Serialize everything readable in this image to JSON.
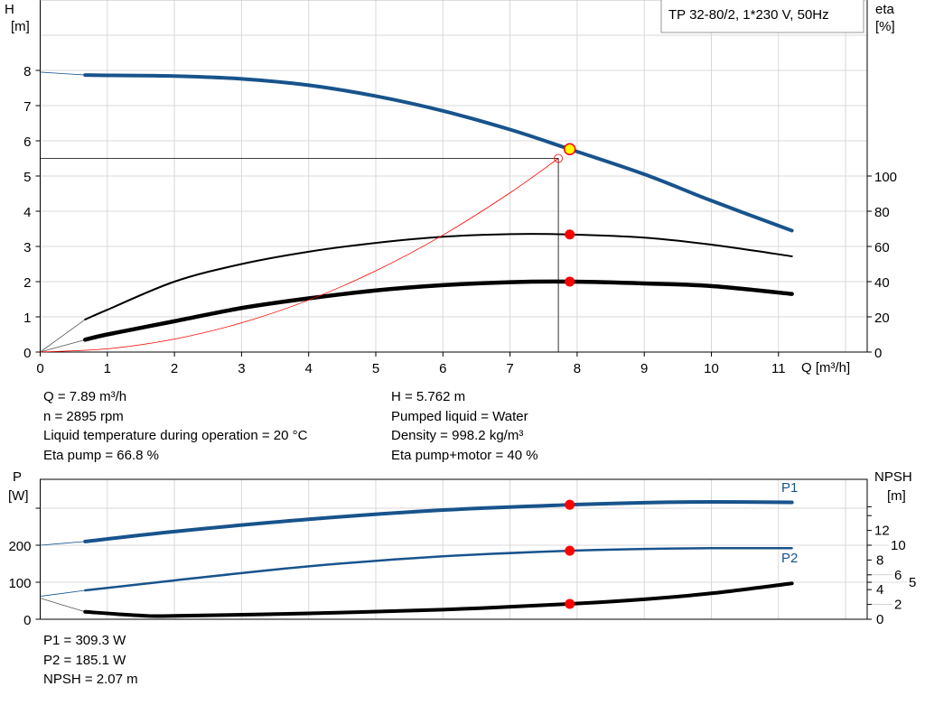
{
  "legend_box": "TP 32-80/2, 1*230 V, 50Hz",
  "colors": {
    "pump_curve": "#18538c",
    "efficiency": "#000000",
    "system_curve": "#ff0000",
    "duty_point": "#ffff00",
    "marker": "#ff0000",
    "grid": "#d8d8d8"
  },
  "chart_data": [
    {
      "type": "line",
      "title": "TP 32-80/2, 1*230 V, 50Hz",
      "xlabel": "Q [m³/h]",
      "ylabel": "H\n[m]",
      "ylabel_right": "eta\n[%]",
      "xlim": [
        0,
        12.3
      ],
      "ylim": [
        0,
        9.9
      ],
      "ylim_right": [
        0,
        198
      ],
      "x_ticks": [
        "0",
        "1",
        "2",
        "3",
        "4",
        "5",
        "6",
        "7",
        "8",
        "9",
        "10",
        "11"
      ],
      "y_ticks": [
        "0",
        "1",
        "2",
        "3",
        "4",
        "5",
        "6",
        "7",
        "8"
      ],
      "y_right_ticks": [
        "0",
        "20",
        "40",
        "60",
        "80",
        "100"
      ],
      "grid": true,
      "series": [
        {
          "key": "H",
          "axis": "left",
          "x": [
            0.67,
            1,
            2,
            3,
            4,
            5,
            6,
            7,
            7.89,
            9,
            10,
            11.2
          ],
          "y": [
            7.87,
            7.86,
            7.84,
            7.76,
            7.58,
            7.27,
            6.85,
            6.32,
            5.762,
            5.05,
            4.3,
            3.45
          ],
          "extrapolated": {
            "x": [
              0,
              0.67
            ],
            "y": [
              7.95,
              7.87
            ]
          }
        },
        {
          "key": "eta_pump",
          "axis": "right",
          "x": [
            0.67,
            1,
            2,
            3,
            4,
            5,
            6,
            7,
            7.89,
            9,
            10,
            11.2
          ],
          "y": [
            18.5,
            24,
            40,
            50,
            57,
            62,
            65.5,
            67,
            66.8,
            65,
            61,
            54.4
          ],
          "extrapolated": {
            "x": [
              0,
              0.67
            ],
            "y": [
              0,
              18.5
            ]
          }
        },
        {
          "key": "eta_pump_motor",
          "axis": "right",
          "x": [
            0.67,
            1,
            2,
            3,
            4,
            5,
            6,
            7,
            7.89,
            9,
            10,
            11.2
          ],
          "y": [
            7,
            10,
            17.5,
            25,
            30.5,
            35,
            38,
            39.7,
            40,
            39,
            37.5,
            33
          ],
          "extrapolated": {
            "x": [
              0,
              0.67
            ],
            "y": [
              0,
              7
            ]
          }
        },
        {
          "key": "system",
          "axis": "left",
          "x": [
            0,
            1,
            2,
            3,
            4,
            5,
            6,
            7,
            7.72
          ],
          "y": [
            0,
            0.092,
            0.369,
            0.83,
            1.476,
            2.307,
            3.322,
            4.522,
            5.5
          ]
        }
      ],
      "duty_point": {
        "Q": 7.89,
        "H": 5.762,
        "eta_pump": 66.8,
        "eta_pump_motor": 40
      },
      "requested_point": {
        "Q": 7.72,
        "H": 5.5
      }
    },
    {
      "type": "line",
      "ylabel": "P\n[W]",
      "ylabel_right": "NPSH\n[m]",
      "xlim": [
        0,
        12.3
      ],
      "ylim": [
        0,
        378
      ],
      "ylim_right": [
        0,
        18.9
      ],
      "y_ticks": [
        "0",
        "100",
        "200"
      ],
      "y_right_ticks": [
        "0",
        "2",
        "4",
        "5",
        "6",
        "8",
        "10",
        "12"
      ],
      "grid": true,
      "series": [
        {
          "key": "P1",
          "name": "P1",
          "axis": "left",
          "x": [
            0.67,
            2,
            4,
            6,
            7.89,
            9,
            10,
            11.2
          ],
          "y": [
            210,
            237,
            270,
            295,
            309.3,
            315,
            317,
            316
          ],
          "extrapolated": {
            "x": [
              0,
              0.67
            ],
            "y": [
              200,
              210
            ]
          }
        },
        {
          "key": "P2",
          "name": "P2",
          "axis": "left",
          "x": [
            0.67,
            2,
            4,
            6,
            7.89,
            9,
            10,
            11.2
          ],
          "y": [
            78,
            105,
            143,
            170,
            185.1,
            190,
            192,
            192
          ],
          "extrapolated": {
            "x": [
              0,
              0.67
            ],
            "y": [
              62,
              78
            ]
          }
        },
        {
          "key": "NPSH",
          "axis": "right",
          "x": [
            0.67,
            1.5,
            2,
            4,
            6,
            7.89,
            9,
            10,
            11.2
          ],
          "y": [
            1.0,
            0.5,
            0.45,
            0.8,
            1.3,
            2.07,
            2.7,
            3.5,
            4.85
          ],
          "extrapolated": {
            "x": [
              0,
              0.67
            ],
            "y": [
              2.85,
              1.0
            ]
          }
        }
      ],
      "duty_point": {
        "Q": 7.89,
        "P1": 309.3,
        "P2": 185.1,
        "NPSH": 2.07
      }
    }
  ],
  "info_left": [
    "Q = 7.89 m³/h",
    "n = 2895 rpm",
    "Liquid temperature during operation = 20 °C",
    "Eta pump = 66.8 %"
  ],
  "info_right": [
    "H = 5.762 m",
    "Pumped liquid = Water",
    "Density = 998.2 kg/m³",
    "Eta pump+motor = 40 %"
  ],
  "info_bottom": [
    "P1 = 309.3 W",
    "P2 = 185.1 W",
    "NPSH = 2.07 m"
  ],
  "labels": {
    "H": "H",
    "H_unit": "[m]",
    "eta": "eta",
    "eta_unit": "[%]",
    "Q": "Q [m³/h]",
    "P": "P",
    "P_unit": "[W]",
    "NPSH": "NPSH",
    "NPSH_unit": "[m]",
    "P1": "P1",
    "P2": "P2"
  }
}
